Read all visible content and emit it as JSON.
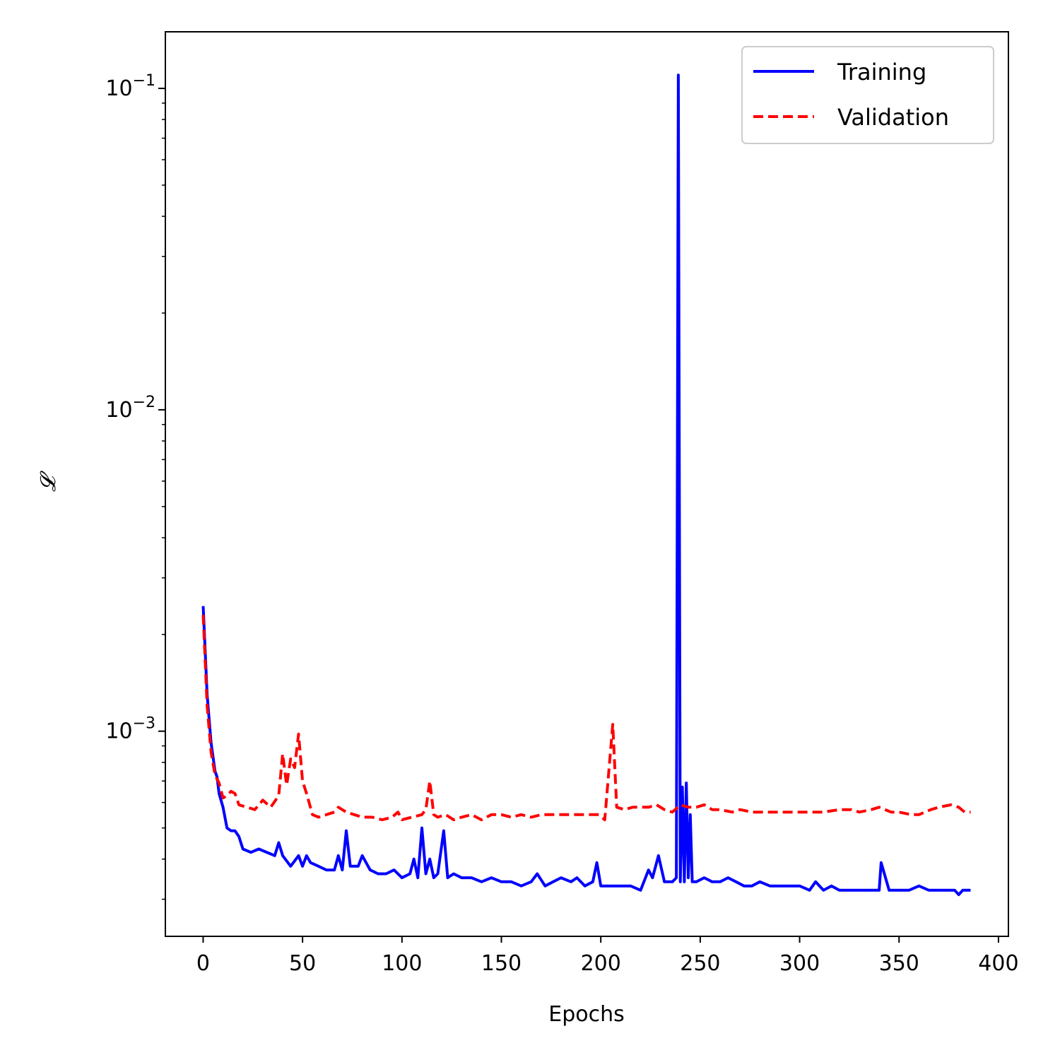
{
  "chart_data": {
    "type": "line",
    "title": "",
    "xlabel": "Epochs",
    "ylabel": "𝓛",
    "xlim": [
      -19,
      405
    ],
    "ylim": [
      0.00023,
      0.15
    ],
    "yscale": "log",
    "grid": false,
    "legend_position": "top-right",
    "xticks": [
      0,
      50,
      100,
      150,
      200,
      250,
      300,
      350,
      400
    ],
    "yticks": [
      {
        "base": "10",
        "exp": "−1"
      },
      {
        "base": "10",
        "exp": "−2"
      },
      {
        "base": "10",
        "exp": "−3"
      }
    ],
    "series": [
      {
        "name": "Training",
        "color": "#0000ff",
        "style": "solid",
        "x": [
          0,
          2,
          4,
          6,
          7,
          8,
          10,
          12,
          14,
          16,
          18,
          20,
          24,
          28,
          32,
          36,
          38,
          40,
          44,
          48,
          50,
          52,
          54,
          58,
          62,
          66,
          68,
          70,
          72,
          74,
          78,
          80,
          84,
          88,
          92,
          96,
          100,
          104,
          106,
          108,
          110,
          112,
          114,
          116,
          118,
          121,
          123,
          126,
          130,
          135,
          140,
          145,
          150,
          155,
          160,
          165,
          168,
          172,
          176,
          180,
          185,
          188,
          192,
          196,
          198,
          200,
          205,
          210,
          215,
          220,
          224,
          226,
          229,
          232,
          236,
          238,
          239,
          240,
          241,
          242,
          243,
          244,
          245,
          246,
          248,
          252,
          256,
          260,
          264,
          268,
          272,
          276,
          280,
          285,
          290,
          295,
          300,
          305,
          308,
          312,
          316,
          320,
          325,
          330,
          335,
          340,
          341,
          345,
          350,
          355,
          360,
          365,
          370,
          375,
          378,
          380,
          382,
          384,
          386
        ],
        "y": [
          0.00245,
          0.0013,
          0.00092,
          0.00075,
          0.00072,
          0.00064,
          0.00058,
          0.0005,
          0.00049,
          0.00049,
          0.00047,
          0.00043,
          0.00042,
          0.00043,
          0.00042,
          0.00041,
          0.00045,
          0.00041,
          0.00038,
          0.00041,
          0.00038,
          0.00041,
          0.00039,
          0.00038,
          0.00037,
          0.00037,
          0.00041,
          0.00037,
          0.00049,
          0.00038,
          0.00038,
          0.00041,
          0.00037,
          0.00036,
          0.00036,
          0.00037,
          0.00035,
          0.00036,
          0.0004,
          0.00035,
          0.0005,
          0.00036,
          0.0004,
          0.00035,
          0.00036,
          0.00049,
          0.00035,
          0.00036,
          0.00035,
          0.00035,
          0.00034,
          0.00035,
          0.00034,
          0.00034,
          0.00033,
          0.00034,
          0.00036,
          0.00033,
          0.00034,
          0.00035,
          0.00034,
          0.00035,
          0.00033,
          0.00034,
          0.00039,
          0.00033,
          0.00033,
          0.00033,
          0.00033,
          0.00032,
          0.00037,
          0.00035,
          0.00041,
          0.00034,
          0.00034,
          0.00035,
          0.11,
          0.00034,
          0.00067,
          0.00034,
          0.00069,
          0.00035,
          0.00055,
          0.00034,
          0.00034,
          0.00035,
          0.00034,
          0.00034,
          0.00035,
          0.00034,
          0.00033,
          0.00033,
          0.00034,
          0.00033,
          0.00033,
          0.00033,
          0.00033,
          0.00032,
          0.00034,
          0.00032,
          0.00033,
          0.00032,
          0.00032,
          0.00032,
          0.00032,
          0.00032,
          0.00039,
          0.00032,
          0.00032,
          0.00032,
          0.00033,
          0.00032,
          0.00032,
          0.00032,
          0.00032,
          0.00031,
          0.00032,
          0.00032,
          0.00032
        ]
      },
      {
        "name": "Validation",
        "color": "#ff0000",
        "style": "dashed",
        "x": [
          0,
          2,
          4,
          6,
          8,
          10,
          12,
          14,
          16,
          18,
          22,
          26,
          30,
          34,
          38,
          40,
          42,
          44,
          46,
          48,
          50,
          52,
          55,
          58,
          62,
          66,
          68,
          72,
          76,
          80,
          85,
          90,
          95,
          98,
          100,
          105,
          110,
          112,
          114,
          116,
          118,
          122,
          126,
          130,
          135,
          140,
          145,
          150,
          155,
          160,
          165,
          170,
          175,
          180,
          185,
          190,
          195,
          199,
          202,
          206,
          208,
          212,
          216,
          220,
          224,
          228,
          232,
          236,
          240,
          244,
          248,
          252,
          256,
          260,
          266,
          270,
          276,
          280,
          286,
          292,
          300,
          306,
          312,
          320,
          326,
          330,
          336,
          340,
          346,
          350,
          356,
          360,
          366,
          370,
          376,
          380,
          383,
          386
        ],
        "y": [
          0.0023,
          0.0012,
          0.00086,
          0.00073,
          0.00069,
          0.00062,
          0.00063,
          0.00065,
          0.00064,
          0.00059,
          0.00058,
          0.00057,
          0.00061,
          0.00058,
          0.00063,
          0.00085,
          0.00068,
          0.00082,
          0.00077,
          0.00098,
          0.0007,
          0.00064,
          0.00055,
          0.00054,
          0.00055,
          0.00056,
          0.00058,
          0.00056,
          0.00055,
          0.00054,
          0.00054,
          0.00053,
          0.00054,
          0.00056,
          0.00053,
          0.00054,
          0.00055,
          0.00057,
          0.0007,
          0.00055,
          0.00054,
          0.00055,
          0.00053,
          0.00054,
          0.00055,
          0.00053,
          0.00055,
          0.00055,
          0.00054,
          0.00055,
          0.00054,
          0.00055,
          0.00055,
          0.00055,
          0.00055,
          0.00055,
          0.00055,
          0.00055,
          0.00053,
          0.00105,
          0.00058,
          0.00057,
          0.00058,
          0.00058,
          0.00058,
          0.00059,
          0.00057,
          0.00056,
          0.00059,
          0.00058,
          0.00058,
          0.00059,
          0.00057,
          0.00057,
          0.00056,
          0.00057,
          0.00056,
          0.00056,
          0.00056,
          0.00056,
          0.00056,
          0.00056,
          0.00056,
          0.00057,
          0.00057,
          0.00056,
          0.00057,
          0.00058,
          0.00056,
          0.00056,
          0.00055,
          0.00055,
          0.00057,
          0.00058,
          0.00059,
          0.00058,
          0.00056,
          0.00056
        ]
      }
    ]
  }
}
